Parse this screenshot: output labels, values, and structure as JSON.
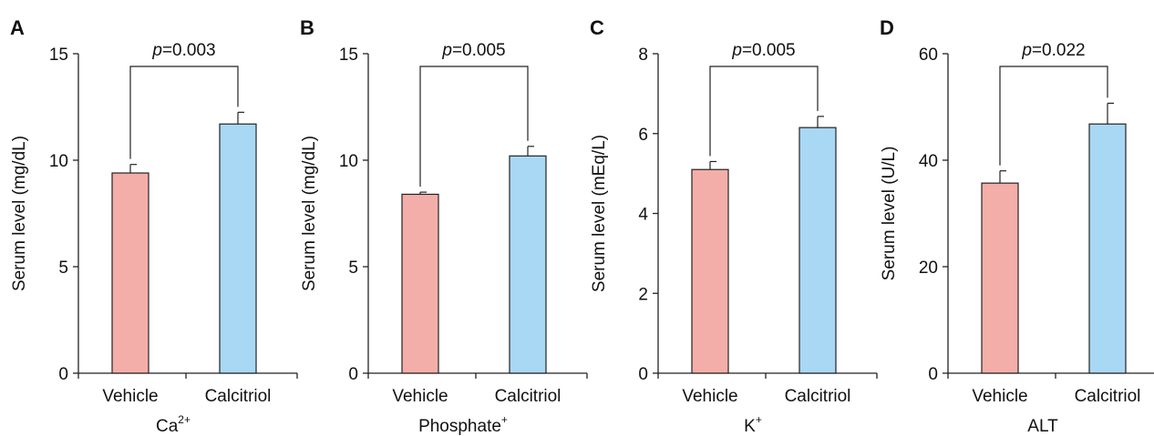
{
  "colors": {
    "vehicle": "#f4aea9",
    "calcitriol": "#a9d8f4",
    "axis": "#222222"
  },
  "chart_data": [
    {
      "panel": "A",
      "type": "bar",
      "categories": [
        "Vehicle",
        "Calcitriol"
      ],
      "values": [
        9.4,
        11.7
      ],
      "errors": [
        0.4,
        0.55
      ],
      "ylabel": "Serum level (mg/dL)",
      "xlabel": "Ca",
      "xlabel_sup": "2+",
      "ylim": [
        0,
        15
      ],
      "yticks": [
        0,
        5,
        10,
        15
      ],
      "pvalue_prefix": "p",
      "pvalue": "=0.003"
    },
    {
      "panel": "B",
      "type": "bar",
      "categories": [
        "Vehicle",
        "Calcitriol"
      ],
      "values": [
        8.4,
        10.2
      ],
      "errors": [
        0.1,
        0.45
      ],
      "ylabel": "Serum level (mg/dL)",
      "xlabel": "Phosphate",
      "xlabel_sup": "+",
      "ylim": [
        0,
        15
      ],
      "yticks": [
        0,
        5,
        10,
        15
      ],
      "pvalue_prefix": "p",
      "pvalue": "=0.005"
    },
    {
      "panel": "C",
      "type": "bar",
      "categories": [
        "Vehicle",
        "Calcitriol"
      ],
      "values": [
        5.1,
        6.15
      ],
      "errors": [
        0.2,
        0.28
      ],
      "ylabel": "Serum level (mEq/L)",
      "xlabel": "K",
      "xlabel_sup": "+",
      "ylim": [
        0,
        8
      ],
      "yticks": [
        0,
        2,
        4,
        6,
        8
      ],
      "pvalue_prefix": "p",
      "pvalue": "=0.005"
    },
    {
      "panel": "D",
      "type": "bar",
      "categories": [
        "Vehicle",
        "Calcitriol"
      ],
      "values": [
        35.7,
        46.8
      ],
      "errors": [
        2.3,
        3.9
      ],
      "ylabel": "Serum level (U/L)",
      "xlabel": "ALT",
      "xlabel_sup": "",
      "ylim": [
        0,
        60
      ],
      "yticks": [
        0,
        20,
        40,
        60
      ],
      "pvalue_prefix": "p",
      "pvalue": "=0.022"
    }
  ]
}
